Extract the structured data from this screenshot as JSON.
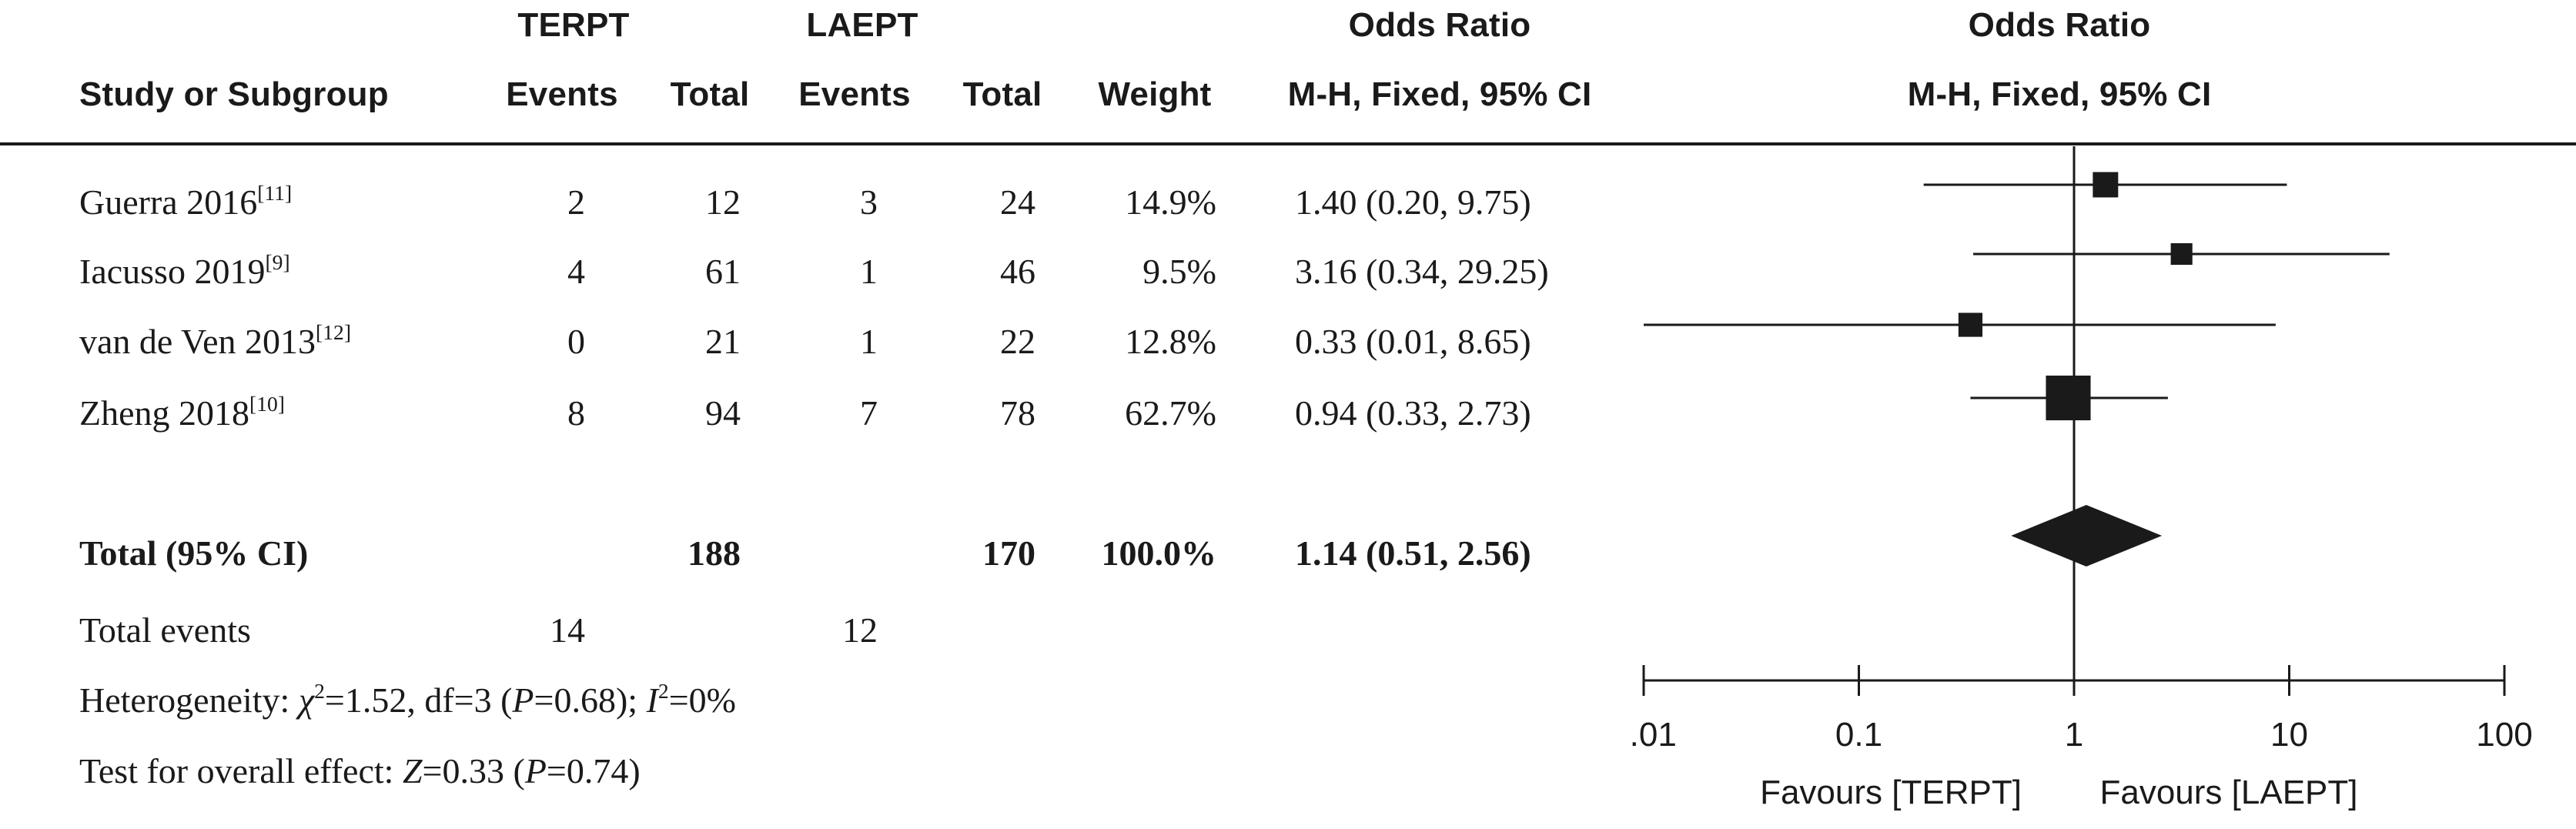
{
  "headers": {
    "group1": "TERPT",
    "group2": "LAEPT",
    "or_col_top": "Odds Ratio",
    "or_plot_top": "Odds Ratio",
    "study": "Study or Subgroup",
    "events1": "Events",
    "total1": "Total",
    "events2": "Events",
    "total2": "Total",
    "weight": "Weight",
    "or_col_method": "M-H, Fixed, 95% CI",
    "or_plot_method": "M-H, Fixed, 95% CI"
  },
  "studies": [
    {
      "name": "Guerra 2016",
      "ref": "[11]",
      "events1": "2",
      "total1": "12",
      "events2": "3",
      "total2": "24",
      "weight": "14.9%",
      "ci_text": "1.40 (0.20, 9.75)"
    },
    {
      "name": "Iacusso 2019",
      "ref": "[9]",
      "events1": "4",
      "total1": "61",
      "events2": "1",
      "total2": "46",
      "weight": "9.5%",
      "ci_text": "3.16 (0.34, 29.25)"
    },
    {
      "name": "van de Ven 2013",
      "ref": "[12]",
      "events1": "0",
      "total1": "21",
      "events2": "1",
      "total2": "22",
      "weight": "12.8%",
      "ci_text": "0.33 (0.01, 8.65)"
    },
    {
      "name": "Zheng 2018",
      "ref": "[10]",
      "events1": "8",
      "total1": "94",
      "events2": "7",
      "total2": "78",
      "weight": "62.7%",
      "ci_text": "0.94 (0.33, 2.73)"
    }
  ],
  "total_row": {
    "label": "Total (95% CI)",
    "total1": "188",
    "total2": "170",
    "weight": "100.0%",
    "ci_text": "1.14 (0.51, 2.56)"
  },
  "total_events": {
    "label": "Total events",
    "events1": "14",
    "events2": "12"
  },
  "heterogeneity": {
    "prefix": "Heterogeneity: ",
    "chi": "χ",
    "chi_sup": "2",
    "chi_val": "=1.52, df=3 (",
    "p": "P",
    "p_val": "=0.68); ",
    "i": "I",
    "i_sup": "2",
    "i_val": "=0%"
  },
  "overall_effect": {
    "prefix": "Test for overall effect: ",
    "z": "Z",
    "z_val": "=0.33 (",
    "p": "P",
    "p_val": "=0.74)"
  },
  "chart_data": {
    "type": "forest",
    "scale": "log",
    "xlim": [
      0.01,
      100
    ],
    "reference_line": 1,
    "ticks": [
      {
        "value": 0.01,
        "label": "0.01"
      },
      {
        "value": 0.1,
        "label": "0.1"
      },
      {
        "value": 1,
        "label": "1"
      },
      {
        "value": 10,
        "label": "10"
      },
      {
        "value": 100,
        "label": "100"
      }
    ],
    "favours_left": "Favours [TERPT]",
    "favours_right": "Favours [LAEPT]",
    "studies": [
      {
        "or": 1.4,
        "lower": 0.2,
        "upper": 9.75,
        "weight": 14.9
      },
      {
        "or": 3.16,
        "lower": 0.34,
        "upper": 29.25,
        "weight": 9.5
      },
      {
        "or": 0.33,
        "lower": 0.01,
        "upper": 8.65,
        "weight": 12.8
      },
      {
        "or": 0.94,
        "lower": 0.33,
        "upper": 2.73,
        "weight": 62.7
      }
    ],
    "pooled": {
      "or": 1.14,
      "lower": 0.51,
      "upper": 2.56
    },
    "colors": {
      "ink": "#1a1a1a"
    }
  }
}
